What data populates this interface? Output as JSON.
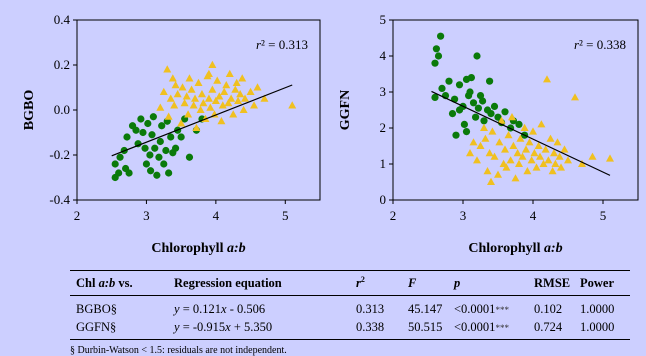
{
  "chart_data": [
    {
      "type": "scatter",
      "ylabel": "BGBO",
      "xlabel": "Chlorophyll a:b",
      "xlim": [
        2,
        5.5
      ],
      "ylim": [
        -0.4,
        0.4
      ],
      "xticks": [
        "2",
        "3",
        "4",
        "5"
      ],
      "yticks": [
        "-0.4",
        "-0.2",
        "0.0",
        "0.2",
        "0.4"
      ],
      "annotation": "r² = 0.313",
      "fit": {
        "slope": 0.121,
        "intercept": -0.506,
        "x_from": 2.5,
        "x_to": 5.1
      },
      "series": [
        {
          "color": "#0a7a0a",
          "marker": "circle",
          "points": [
            [
              2.55,
              -0.24
            ],
            [
              2.6,
              -0.28
            ],
            [
              2.55,
              -0.3
            ],
            [
              2.62,
              -0.21
            ],
            [
              2.68,
              -0.18
            ],
            [
              2.7,
              -0.26
            ],
            [
              2.72,
              -0.12
            ],
            [
              2.75,
              -0.28
            ],
            [
              2.8,
              -0.07
            ],
            [
              2.85,
              -0.09
            ],
            [
              2.88,
              -0.15
            ],
            [
              2.92,
              -0.04
            ],
            [
              2.95,
              -0.1
            ],
            [
              2.98,
              -0.17
            ],
            [
              3.0,
              -0.24
            ],
            [
              3.02,
              -0.06
            ],
            [
              3.05,
              -0.2
            ],
            [
              3.06,
              -0.27
            ],
            [
              3.08,
              -0.11
            ],
            [
              3.1,
              -0.03
            ],
            [
              3.12,
              -0.17
            ],
            [
              3.15,
              -0.29
            ],
            [
              3.18,
              -0.21
            ],
            [
              3.2,
              -0.14
            ],
            [
              3.22,
              -0.07
            ],
            [
              3.25,
              -0.24
            ],
            [
              3.28,
              -0.18
            ],
            [
              3.3,
              -0.05
            ],
            [
              3.32,
              -0.28
            ],
            [
              3.35,
              -0.12
            ],
            [
              3.38,
              -0.19
            ],
            [
              3.42,
              -0.17
            ],
            [
              3.45,
              -0.09
            ],
            [
              3.5,
              -0.12
            ],
            [
              3.55,
              -0.04
            ],
            [
              3.62,
              -0.21
            ],
            [
              3.72,
              -0.09
            ],
            [
              3.8,
              -0.04
            ]
          ]
        },
        {
          "color": "#f0c020",
          "marker": "triangle",
          "points": [
            [
              3.2,
              0.01
            ],
            [
              3.25,
              0.08
            ],
            [
              3.3,
              0.18
            ],
            [
              3.32,
              -0.03
            ],
            [
              3.35,
              0.05
            ],
            [
              3.38,
              0.14
            ],
            [
              3.4,
              0.02
            ],
            [
              3.42,
              0.11
            ],
            [
              3.45,
              0.07
            ],
            [
              3.5,
              -0.06
            ],
            [
              3.52,
              0.1
            ],
            [
              3.55,
              0.03
            ],
            [
              3.58,
              0.06
            ],
            [
              3.6,
              -0.02
            ],
            [
              3.62,
              0.14
            ],
            [
              3.65,
              0.09
            ],
            [
              3.68,
              0.02
            ],
            [
              3.7,
              0.05
            ],
            [
              3.72,
              -0.08
            ],
            [
              3.75,
              0.12
            ],
            [
              3.78,
              0.0
            ],
            [
              3.8,
              0.07
            ],
            [
              3.82,
              0.03
            ],
            [
              3.85,
              -0.04
            ],
            [
              3.88,
              0.15
            ],
            [
              3.9,
              0.05
            ],
            [
              3.92,
              0.01
            ],
            [
              3.95,
              0.09
            ],
            [
              3.98,
              -0.02
            ],
            [
              4.0,
              0.04
            ],
            [
              4.02,
              0.13
            ],
            [
              4.05,
              0.06
            ],
            [
              4.08,
              -0.05
            ],
            [
              4.1,
              0.02
            ],
            [
              4.12,
              0.08
            ],
            [
              4.15,
              0.11
            ],
            [
              4.18,
              0.03
            ],
            [
              4.2,
              0.16
            ],
            [
              4.22,
              0.05
            ],
            [
              4.25,
              -0.02
            ],
            [
              4.28,
              0.09
            ],
            [
              4.3,
              0.12
            ],
            [
              4.32,
              0.04
            ],
            [
              4.35,
              0.07
            ],
            [
              4.38,
              0.14
            ],
            [
              4.4,
              0.0
            ],
            [
              4.42,
              0.05
            ],
            [
              4.5,
              0.08
            ],
            [
              4.55,
              0.02
            ],
            [
              4.6,
              0.1
            ],
            [
              4.7,
              0.05
            ],
            [
              5.1,
              0.02
            ],
            [
              3.9,
              0.16
            ],
            [
              3.95,
              0.2
            ]
          ]
        }
      ]
    },
    {
      "type": "scatter",
      "ylabel": "GGFN",
      "xlabel": "Chlorophyll a:b",
      "xlim": [
        2,
        5.5
      ],
      "ylim": [
        0,
        5
      ],
      "xticks": [
        "2",
        "3",
        "4",
        "5"
      ],
      "yticks": [
        "0",
        "1",
        "2",
        "3",
        "4",
        "5"
      ],
      "annotation": "r² = 0.338",
      "fit": {
        "slope": -0.915,
        "intercept": 5.35,
        "x_from": 2.55,
        "x_to": 5.1
      },
      "series": [
        {
          "color": "#0a7a0a",
          "marker": "circle",
          "points": [
            [
              2.6,
              3.8
            ],
            [
              2.62,
              4.2
            ],
            [
              2.68,
              4.55
            ],
            [
              2.6,
              2.85
            ],
            [
              2.7,
              3.1
            ],
            [
              2.75,
              2.9
            ],
            [
              2.8,
              3.3
            ],
            [
              2.85,
              2.4
            ],
            [
              2.88,
              2.8
            ],
            [
              2.9,
              1.8
            ],
            [
              2.95,
              3.2
            ],
            [
              3.0,
              2.6
            ],
            [
              3.02,
              2.1
            ],
            [
              3.05,
              3.35
            ],
            [
              3.08,
              2.9
            ],
            [
              3.1,
              3.0
            ],
            [
              3.12,
              3.4
            ],
            [
              3.15,
              2.7
            ],
            [
              3.18,
              2.3
            ],
            [
              3.2,
              4.0
            ],
            [
              3.22,
              2.55
            ],
            [
              3.25,
              2.9
            ],
            [
              3.28,
              2.75
            ],
            [
              3.3,
              2.2
            ],
            [
              3.35,
              2.5
            ],
            [
              3.38,
              3.3
            ],
            [
              3.4,
              2.4
            ],
            [
              3.45,
              2.6
            ],
            [
              3.5,
              2.3
            ],
            [
              3.55,
              2.15
            ],
            [
              3.6,
              2.45
            ],
            [
              3.68,
              2.0
            ],
            [
              3.72,
              2.2
            ],
            [
              3.8,
              2.1
            ],
            [
              3.88,
              1.8
            ],
            [
              2.65,
              4.0
            ],
            [
              2.95,
              2.5
            ],
            [
              3.05,
              1.9
            ]
          ]
        },
        {
          "color": "#f0c020",
          "marker": "triangle",
          "points": [
            [
              3.2,
              1.1
            ],
            [
              3.25,
              1.5
            ],
            [
              3.3,
              2.0
            ],
            [
              3.32,
              1.7
            ],
            [
              3.35,
              0.8
            ],
            [
              3.38,
              1.3
            ],
            [
              3.4,
              0.5
            ],
            [
              3.42,
              1.9
            ],
            [
              3.45,
              1.2
            ],
            [
              3.5,
              0.7
            ],
            [
              3.52,
              1.6
            ],
            [
              3.55,
              2.2
            ],
            [
              3.58,
              1.0
            ],
            [
              3.6,
              1.4
            ],
            [
              3.62,
              0.9
            ],
            [
              3.65,
              1.8
            ],
            [
              3.68,
              1.1
            ],
            [
              3.7,
              2.3
            ],
            [
              3.72,
              1.5
            ],
            [
              3.75,
              0.6
            ],
            [
              3.78,
              1.3
            ],
            [
              3.8,
              1.0
            ],
            [
              3.82,
              1.7
            ],
            [
              3.85,
              1.2
            ],
            [
              3.88,
              2.0
            ],
            [
              3.9,
              1.4
            ],
            [
              3.92,
              0.8
            ],
            [
              3.95,
              1.6
            ],
            [
              3.98,
              1.1
            ],
            [
              4.0,
              1.9
            ],
            [
              4.02,
              1.3
            ],
            [
              4.05,
              0.9
            ],
            [
              4.08,
              1.5
            ],
            [
              4.1,
              1.2
            ],
            [
              4.12,
              2.1
            ],
            [
              4.15,
              1.0
            ],
            [
              4.18,
              1.4
            ],
            [
              4.2,
              3.35
            ],
            [
              4.22,
              1.1
            ],
            [
              4.25,
              1.7
            ],
            [
              4.28,
              0.8
            ],
            [
              4.3,
              1.3
            ],
            [
              4.32,
              1.0
            ],
            [
              4.35,
              1.6
            ],
            [
              4.38,
              1.2
            ],
            [
              4.4,
              0.9
            ],
            [
              4.45,
              1.4
            ],
            [
              4.5,
              1.1
            ],
            [
              4.6,
              2.85
            ],
            [
              4.7,
              1.0
            ],
            [
              4.85,
              1.2
            ],
            [
              5.1,
              1.15
            ],
            [
              3.1,
              1.3
            ],
            [
              3.15,
              1.6
            ]
          ]
        }
      ]
    }
  ],
  "table": {
    "headers": {
      "col1_a": "Chl ",
      "col1_b": "a:b",
      "col1_c": " vs.",
      "col2": "Regression equation",
      "col3_base": "r",
      "col3_sup": "2",
      "col4": "F",
      "col5": "p",
      "col6": "RMSE",
      "col7": "Power"
    },
    "rows": [
      {
        "name": "BGBO§",
        "eq_y": "y",
        "eq_rest": " =  0.121",
        "eq_x": "x",
        "eq_tail": " - 0.506",
        "r2": "0.313",
        "F": "45.147",
        "p": "<0.0001",
        "stars": "***",
        "rmse": "0.102",
        "power": "1.0000"
      },
      {
        "name": "GGFN§",
        "eq_y": "y",
        "eq_rest": " = -0.915",
        "eq_x": "x",
        "eq_tail": " + 5.350",
        "r2": "0.338",
        "F": "50.515",
        "p": "<0.0001",
        "stars": "***",
        "rmse": "0.724",
        "power": "1.0000"
      }
    ],
    "footnote": "§ Durbin-Watson < 1.5: residuals are not independent."
  }
}
